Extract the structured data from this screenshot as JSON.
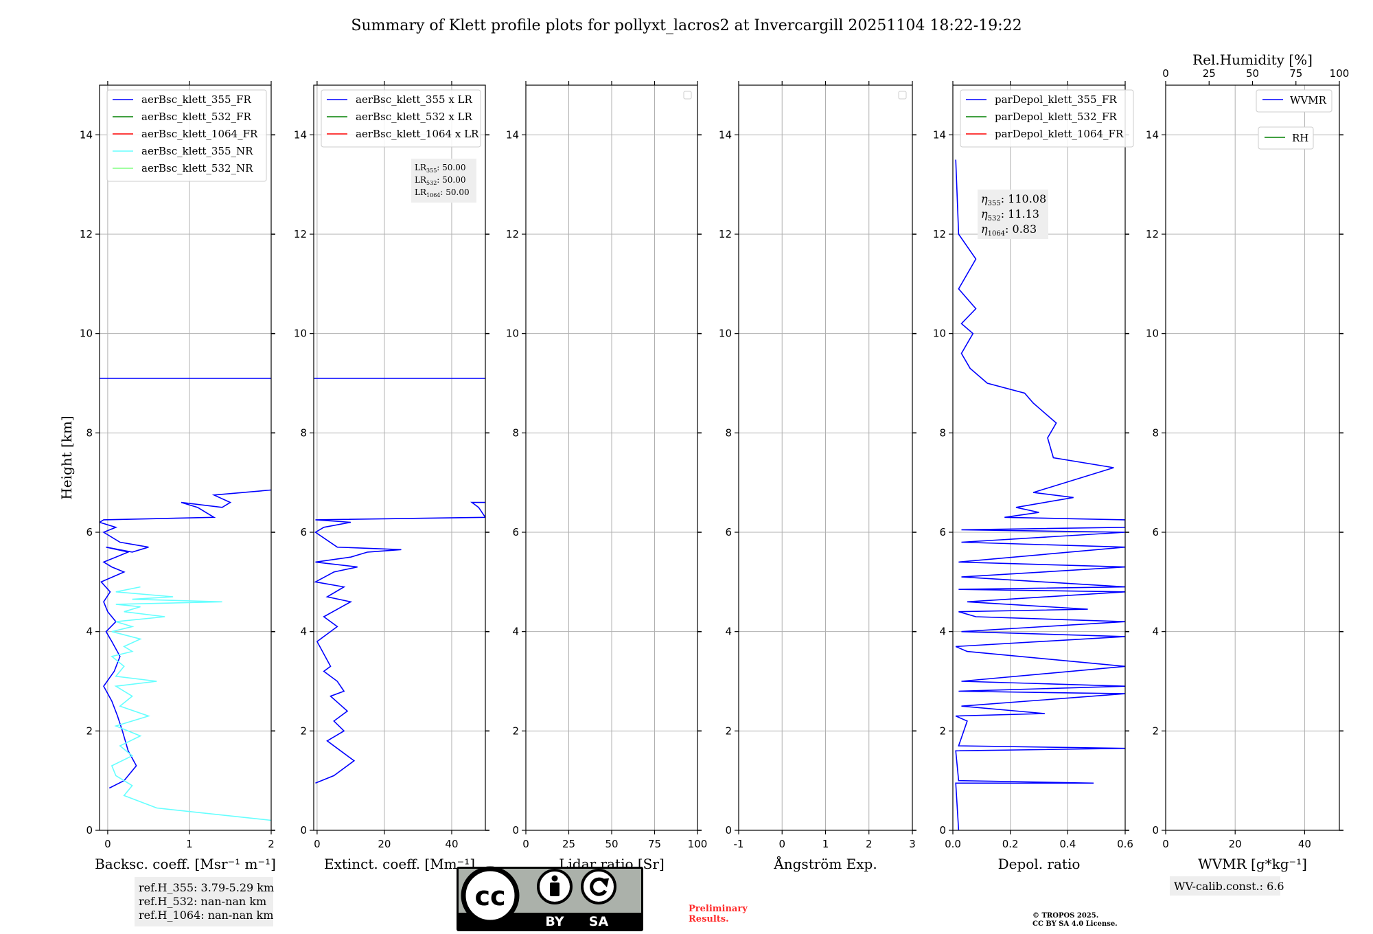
{
  "title": "Summary of Klett profile plots for pollyxt_lacros2 at Invercargill 20251104 18:22-19:22",
  "colors": {
    "b355": "#0000ff",
    "g532": "#008000",
    "r1064": "#ff0000",
    "c355nr": "#66ffff",
    "lg532nr": "#80ff80",
    "grid": "#b0b0b0",
    "legendFrame": "#cccccc",
    "infoBox": "#eeeeee",
    "prelim": "#ff2b2b"
  },
  "chart_data": [
    {
      "type": "line",
      "panel": "backscatter",
      "xlabel": "Backsc. coeff. [Msr⁻¹ m⁻¹]",
      "ylabel": "Height [km]",
      "xlim": [
        -0.1,
        2.0
      ],
      "ylim": [
        0,
        15
      ],
      "xticks": [
        0,
        1,
        2
      ],
      "yticks": [
        0,
        2,
        4,
        6,
        8,
        10,
        12,
        14
      ],
      "legend": [
        "aerBsc_klett_355_FR",
        "aerBsc_klett_532_FR",
        "aerBsc_klett_1064_FR",
        "aerBsc_klett_355_NR",
        "aerBsc_klett_532_NR"
      ],
      "series": [
        {
          "name": "aerBsc_klett_355_FR",
          "color": "b355",
          "x": [
            0.02,
            0.2,
            0.35,
            0.25,
            0.18,
            0.12,
            0.05,
            -0.05,
            0.08,
            0.15,
            0.05,
            -0.02,
            0.1,
            0.0,
            -0.05,
            0.03,
            -0.08,
            0.2,
            0.05,
            -0.05,
            0.1,
            0.25,
            -0.02,
            0.3,
            0.5,
            0.15,
            -0.05,
            0.1,
            -0.1,
            -0.05,
            1.3,
            1.2,
            1.1,
            0.9,
            1.4,
            1.5,
            1.3,
            2.0
          ],
          "y": [
            0.85,
            1.0,
            1.3,
            1.6,
            2.0,
            2.3,
            2.6,
            2.9,
            3.2,
            3.5,
            3.8,
            4.0,
            4.2,
            4.4,
            4.6,
            4.8,
            5.0,
            5.2,
            5.3,
            5.4,
            5.5,
            5.6,
            5.7,
            5.6,
            5.7,
            5.8,
            6.0,
            6.1,
            6.2,
            6.25,
            6.3,
            6.4,
            6.5,
            6.6,
            6.5,
            6.6,
            6.75,
            6.85
          ]
        },
        {
          "name": "aerBsc_klett_355_FR",
          "color": "b355",
          "x": [
            -0.1,
            2.0
          ],
          "y": [
            9.1,
            9.1
          ]
        },
        {
          "name": "aerBsc_klett_355_NR",
          "color": "c355nr",
          "x": [
            2.0,
            0.6,
            0.2,
            0.3,
            0.1,
            0.05,
            0.3,
            0.15,
            0.4,
            0.1,
            0.5,
            0.15,
            0.3,
            0.1,
            0.6,
            0.1,
            0.2,
            0.05,
            0.3,
            0.2,
            0.4,
            0.05,
            0.3,
            0.1,
            0.7,
            0.2,
            0.4,
            0.1,
            1.4,
            0.3,
            0.8,
            0.1,
            0.4
          ],
          "y": [
            0.2,
            0.45,
            0.7,
            0.9,
            1.1,
            1.3,
            1.5,
            1.7,
            1.9,
            2.1,
            2.3,
            2.5,
            2.7,
            2.9,
            3.0,
            3.1,
            3.3,
            3.5,
            3.6,
            3.7,
            3.85,
            4.0,
            4.1,
            4.2,
            4.3,
            4.4,
            4.5,
            4.55,
            4.6,
            4.65,
            4.7,
            4.8,
            4.9
          ]
        }
      ],
      "annotation": [
        "ref.H_355: 3.79-5.29 km",
        "ref.H_532: nan-nan km",
        "ref.H_1064: nan-nan km"
      ]
    },
    {
      "type": "line",
      "panel": "extinction",
      "xlabel": "Extinct. coeff. [Mm⁻¹]",
      "xlim": [
        -1,
        50
      ],
      "ylim": [
        0,
        15
      ],
      "xticks": [
        0,
        20,
        40
      ],
      "yticks": [
        0,
        2,
        4,
        6,
        8,
        10,
        12,
        14
      ],
      "legend": [
        "aerBsc_klett_355 x LR",
        "aerBsc_klett_532 x LR",
        "aerBsc_klett_1064 x LR"
      ],
      "series": [
        {
          "name": "aerBsc_klett_355 x LR",
          "color": "b355",
          "x": [
            -0.5,
            5,
            11,
            7,
            3,
            8,
            5,
            9,
            4,
            8,
            6,
            2,
            4,
            0,
            6,
            2,
            10,
            3,
            8,
            -0.5,
            5,
            12,
            -0.5,
            10,
            15,
            25,
            6,
            -0.5,
            2,
            10,
            -0.5,
            50,
            48,
            46,
            50
          ],
          "y": [
            0.95,
            1.1,
            1.4,
            1.6,
            1.8,
            2.0,
            2.2,
            2.4,
            2.7,
            2.8,
            3.0,
            3.2,
            3.3,
            3.8,
            4.1,
            4.3,
            4.6,
            4.7,
            4.9,
            5.0,
            5.2,
            5.3,
            5.4,
            5.5,
            5.6,
            5.65,
            5.7,
            6.0,
            6.1,
            6.2,
            6.25,
            6.3,
            6.5,
            6.6,
            6.6
          ]
        },
        {
          "name": "aerBsc_klett_355 x LR",
          "color": "b355",
          "x": [
            -1,
            50
          ],
          "y": [
            9.1,
            9.1
          ]
        }
      ],
      "annotation": [
        "LR355: 50.00",
        "LR532: 50.00",
        "LR1064: 50.00"
      ]
    },
    {
      "type": "line",
      "panel": "lidar_ratio",
      "xlabel": "Lidar ratio [Sr]",
      "xlim": [
        0,
        100
      ],
      "ylim": [
        0,
        15
      ],
      "xticks": [
        0,
        25,
        50,
        75,
        100
      ],
      "yticks": [
        0,
        2,
        4,
        6,
        8,
        10,
        12,
        14
      ],
      "series": []
    },
    {
      "type": "line",
      "panel": "angstrom",
      "xlabel": "Ångström Exp.",
      "xlim": [
        -1,
        3
      ],
      "ylim": [
        0,
        15
      ],
      "xticks": [
        -1,
        0,
        1,
        2,
        3
      ],
      "yticks": [
        0,
        2,
        4,
        6,
        8,
        10,
        12,
        14
      ],
      "series": []
    },
    {
      "type": "line",
      "panel": "depolarization",
      "xlabel": "Depol. ratio",
      "xlim": [
        0.0,
        0.6
      ],
      "ylim": [
        0,
        15
      ],
      "xticks": [
        0.0,
        0.2,
        0.4,
        0.6
      ],
      "yticks": [
        0,
        2,
        4,
        6,
        8,
        10,
        12,
        14
      ],
      "legend": [
        "parDepol_klett_355_FR",
        "parDepol_klett_532_FR",
        "parDepol_klett_1064_FR"
      ],
      "series": [
        {
          "name": "parDepol_klett_355_FR",
          "color": "b355",
          "x": [
            0.02,
            0.01,
            0.49,
            0.02,
            0.01,
            0.6,
            0.02,
            0.05,
            0.01,
            0.32,
            0.03,
            0.6,
            0.02,
            0.6,
            0.03,
            0.6,
            0.05,
            0.01,
            0.6,
            0.03,
            0.6,
            0.08,
            0.02,
            0.47,
            0.05,
            0.6,
            0.02,
            0.6,
            0.03,
            0.6,
            0.02,
            0.6,
            0.03,
            0.6,
            0.03,
            0.6,
            0.6,
            0.6,
            0.6,
            0.18,
            0.3,
            0.22,
            0.42,
            0.28,
            0.56,
            0.35,
            0.33,
            0.36,
            0.3,
            0.28,
            0.25,
            0.12,
            0.06,
            0.03,
            0.07,
            0.03,
            0.08,
            0.05,
            0.02,
            0.08,
            0.02,
            0.01
          ],
          "y": [
            0.0,
            0.95,
            0.95,
            1.0,
            1.6,
            1.65,
            1.7,
            2.2,
            2.3,
            2.35,
            2.5,
            2.75,
            2.8,
            2.9,
            3.0,
            3.3,
            3.6,
            3.7,
            3.9,
            4.0,
            4.2,
            4.3,
            4.4,
            4.45,
            4.6,
            4.8,
            4.85,
            4.9,
            5.1,
            5.3,
            5.4,
            5.7,
            5.8,
            6.0,
            6.05,
            6.1,
            6.15,
            6.2,
            6.25,
            6.3,
            6.4,
            6.5,
            6.7,
            6.8,
            7.3,
            7.5,
            7.9,
            8.2,
            8.5,
            8.6,
            8.8,
            9.0,
            9.3,
            9.6,
            10.0,
            10.2,
            10.5,
            10.7,
            10.9,
            11.5,
            12.0,
            13.5
          ]
        }
      ],
      "annotation": [
        "η355: 110.08",
        "η532: 11.13",
        "η1064: 0.83"
      ]
    },
    {
      "type": "line",
      "panel": "water_vapor",
      "xlabel": "WVMR [g*kg⁻¹]",
      "toplabel": "Rel.Humidity [%]",
      "xlim": [
        0,
        50
      ],
      "ylim": [
        0,
        15
      ],
      "xticks": [
        0,
        20,
        40
      ],
      "topticks": [
        0,
        25,
        50,
        75,
        100
      ],
      "yticks": [
        0,
        2,
        4,
        6,
        8,
        10,
        12,
        14
      ],
      "legend": [
        "WVMR",
        "RH"
      ],
      "series": [],
      "annotation": [
        "WV-calib.const.: 6.6"
      ]
    }
  ],
  "footer": {
    "license_badge": {
      "top": "cc",
      "by": "BY",
      "sa": "SA"
    },
    "preliminary": [
      "Preliminary",
      "Results."
    ],
    "copyright": [
      "© TROPOS 2025.",
      "CC BY SA 4.0 License."
    ]
  }
}
